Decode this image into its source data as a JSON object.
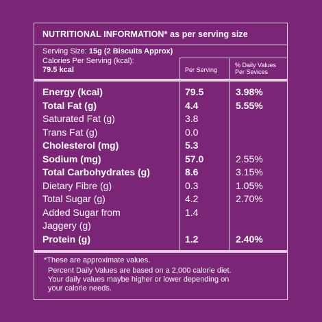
{
  "title": "NUTRITIONAL INFORMATION* as per serving size",
  "serving": {
    "size_label": "Serving Size: ",
    "size_value": "15g (2 Biscuits Approx)",
    "calories_label": "Calories Per Serving (kcal):",
    "calories_value": "79.5 kcal"
  },
  "headers": {
    "per_serving": "Per Serving",
    "dv_line1": "% Daily Values",
    "dv_line2": "Per Sevices"
  },
  "rows": [
    {
      "label": "Energy (kcal)",
      "value": "79.5",
      "dv": "3.98%"
    },
    {
      "label": "Total Fat (g)",
      "value": "4.4",
      "dv": "5.55%"
    },
    {
      "label": "Saturated Fat (g)",
      "value": "3.8",
      "dv": ""
    },
    {
      "label": "Trans Fat (g)",
      "value": "0.0",
      "dv": ""
    },
    {
      "label": "Cholesterol (mg)",
      "value": "5.3",
      "dv": ""
    },
    {
      "label": "Sodium (mg)",
      "value": "57.0",
      "dv": "2.55%"
    },
    {
      "label": "Total Carbohydrates (g)",
      "value": "8.6",
      "dv": "3.15%"
    },
    {
      "label": "Dietary Fibre (g)",
      "value": "0.3",
      "dv": "1.05%"
    },
    {
      "label": "Total Sugar (g)",
      "value": "4.2",
      "dv": "2.70%"
    },
    {
      "label": "Added Sugar from",
      "label2": "Jaggery (g)",
      "value": "1.4",
      "dv": ""
    },
    {
      "label": "Protein (g)",
      "value": "1.2",
      "dv": "2.40%"
    }
  ],
  "footnote": {
    "line1": "*These are approximate values.",
    "line2": "Percent Daily Values are based on a 2,000 calorie diet.",
    "line3": "Your daily values maybe higher or lower depending on",
    "line4": "your calorie needs."
  }
}
